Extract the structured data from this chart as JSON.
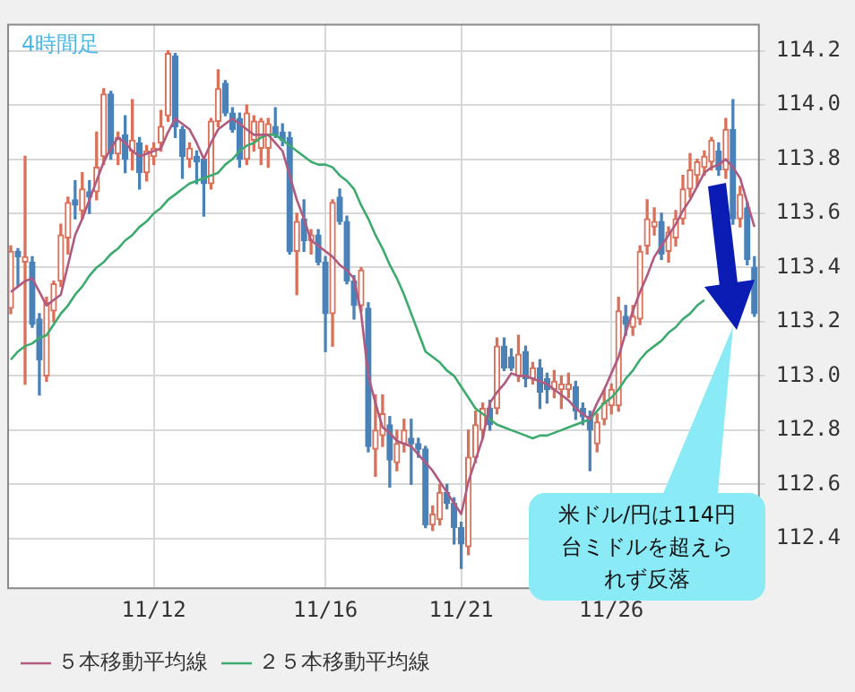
{
  "chart_data": {
    "type": "candlestick",
    "title": "4時間足",
    "categories": [
      null,
      null,
      null,
      null,
      null,
      null,
      null,
      null,
      null,
      null,
      null,
      null,
      null,
      null,
      null,
      null,
      null,
      null,
      null,
      null,
      "11/12",
      null,
      null,
      null,
      null,
      null,
      null,
      null,
      null,
      null,
      null,
      null,
      null,
      null,
      null,
      null,
      null,
      null,
      null,
      null,
      null,
      null,
      null,
      null,
      "11/16",
      null,
      null,
      null,
      null,
      null,
      null,
      null,
      null,
      null,
      null,
      null,
      null,
      null,
      null,
      null,
      null,
      null,
      null,
      "11/21",
      null,
      null,
      null,
      null,
      null,
      null,
      null,
      null,
      null,
      null,
      null,
      null,
      null,
      null,
      null,
      null,
      null,
      null,
      null,
      null,
      "11/26",
      null,
      null,
      null,
      null,
      null,
      null,
      null,
      null,
      null,
      null,
      null,
      null,
      null,
      null,
      null,
      null,
      null,
      null,
      null,
      null
    ],
    "ohlc": [
      [
        113.25,
        113.48,
        113.23,
        113.46
      ],
      [
        113.46,
        113.47,
        113.33,
        113.44
      ],
      [
        113.42,
        113.81,
        112.97,
        113.44
      ],
      [
        113.42,
        113.44,
        113.18,
        113.19
      ],
      [
        113.21,
        113.23,
        112.93,
        113.06
      ],
      [
        113.0,
        113.29,
        112.98,
        113.27
      ],
      [
        113.24,
        113.35,
        113.2,
        113.34
      ],
      [
        113.35,
        113.56,
        113.33,
        113.52
      ],
      [
        113.51,
        113.66,
        113.45,
        113.64
      ],
      [
        113.65,
        113.72,
        113.58,
        113.63
      ],
      [
        113.61,
        113.75,
        113.58,
        113.69
      ],
      [
        113.68,
        113.72,
        113.6,
        113.66
      ],
      [
        113.68,
        113.9,
        113.65,
        113.77
      ],
      [
        113.81,
        114.06,
        113.78,
        114.04
      ],
      [
        114.04,
        114.05,
        113.8,
        113.82
      ],
      [
        113.82,
        113.9,
        113.78,
        113.88
      ],
      [
        113.89,
        113.96,
        113.75,
        113.8
      ],
      [
        113.83,
        114.02,
        113.76,
        113.87
      ],
      [
        113.86,
        113.88,
        113.69,
        113.75
      ],
      [
        113.75,
        113.85,
        113.72,
        113.83
      ],
      [
        113.81,
        113.86,
        113.78,
        113.84
      ],
      [
        113.86,
        113.98,
        113.83,
        113.92
      ],
      [
        113.96,
        114.2,
        113.94,
        114.19
      ],
      [
        114.18,
        114.19,
        113.88,
        113.92
      ],
      [
        113.91,
        113.92,
        113.73,
        113.81
      ],
      [
        113.8,
        113.86,
        113.77,
        113.84
      ],
      [
        113.81,
        113.83,
        113.71,
        113.79
      ],
      [
        113.8,
        113.81,
        113.59,
        113.71
      ],
      [
        113.71,
        113.95,
        113.69,
        113.94
      ],
      [
        113.94,
        114.13,
        113.92,
        114.06
      ],
      [
        114.08,
        114.09,
        113.96,
        113.97
      ],
      [
        113.97,
        113.99,
        113.9,
        113.91
      ],
      [
        113.95,
        113.97,
        113.77,
        113.8
      ],
      [
        113.8,
        114.0,
        113.78,
        113.97
      ],
      [
        113.87,
        113.96,
        113.83,
        113.94
      ],
      [
        113.84,
        113.95,
        113.78,
        113.94
      ],
      [
        113.84,
        113.95,
        113.77,
        113.93
      ],
      [
        113.92,
        113.99,
        113.88,
        113.89
      ],
      [
        113.9,
        113.93,
        113.85,
        113.87
      ],
      [
        113.88,
        113.9,
        113.45,
        113.46
      ],
      [
        113.46,
        113.6,
        113.3,
        113.57
      ],
      [
        113.58,
        113.65,
        113.46,
        113.5
      ],
      [
        113.5,
        113.54,
        113.45,
        113.52
      ],
      [
        113.52,
        113.54,
        113.41,
        113.42
      ],
      [
        113.42,
        113.44,
        113.09,
        113.23
      ],
      [
        113.23,
        113.65,
        113.11,
        113.64
      ],
      [
        113.66,
        113.69,
        113.56,
        113.57
      ],
      [
        113.57,
        113.59,
        113.34,
        113.35
      ],
      [
        113.35,
        113.37,
        113.21,
        113.26
      ],
      [
        113.26,
        113.4,
        113.24,
        113.39
      ],
      [
        113.25,
        113.27,
        112.72,
        112.74
      ],
      [
        112.73,
        112.93,
        112.63,
        112.8
      ],
      [
        112.78,
        112.93,
        112.74,
        112.86
      ],
      [
        112.82,
        112.85,
        112.59,
        112.69
      ],
      [
        112.68,
        112.8,
        112.65,
        112.75
      ],
      [
        112.75,
        112.84,
        112.72,
        112.8
      ],
      [
        112.77,
        112.84,
        112.6,
        112.75
      ],
      [
        112.75,
        112.77,
        112.7,
        112.73
      ],
      [
        112.73,
        112.74,
        112.44,
        112.45
      ],
      [
        112.45,
        112.52,
        112.43,
        112.49
      ],
      [
        112.47,
        112.6,
        112.45,
        112.57
      ],
      [
        112.57,
        112.6,
        112.51,
        112.53
      ],
      [
        112.53,
        112.55,
        112.38,
        112.44
      ],
      [
        112.44,
        112.46,
        112.29,
        112.38
      ],
      [
        112.37,
        112.8,
        112.34,
        112.7
      ],
      [
        112.7,
        112.87,
        112.68,
        112.82
      ],
      [
        112.8,
        112.9,
        112.77,
        112.88
      ],
      [
        112.88,
        112.91,
        112.8,
        112.82
      ],
      [
        112.88,
        113.14,
        112.86,
        113.11
      ],
      [
        113.11,
        113.14,
        113.02,
        113.03
      ],
      [
        113.07,
        113.1,
        113.02,
        113.03
      ],
      [
        113.0,
        113.15,
        112.98,
        113.08
      ],
      [
        113.09,
        113.11,
        112.96,
        112.99
      ],
      [
        112.99,
        113.05,
        112.97,
        113.03
      ],
      [
        113.03,
        113.06,
        112.88,
        112.94
      ],
      [
        112.99,
        113.01,
        112.9,
        112.95
      ],
      [
        112.95,
        113.02,
        112.92,
        112.98
      ],
      [
        112.95,
        113.0,
        112.88,
        112.97
      ],
      [
        112.95,
        113.01,
        112.92,
        112.97
      ],
      [
        112.96,
        112.98,
        112.84,
        112.87
      ],
      [
        112.88,
        112.9,
        112.82,
        112.85
      ],
      [
        112.85,
        112.87,
        112.65,
        112.8
      ],
      [
        112.75,
        112.86,
        112.72,
        112.83
      ],
      [
        112.84,
        112.95,
        112.82,
        112.9
      ],
      [
        112.89,
        112.97,
        112.86,
        112.95
      ],
      [
        112.89,
        113.29,
        112.87,
        113.24
      ],
      [
        113.22,
        113.26,
        113.15,
        113.19
      ],
      [
        113.18,
        113.26,
        113.15,
        113.22
      ],
      [
        113.21,
        113.48,
        113.19,
        113.46
      ],
      [
        113.48,
        113.65,
        113.45,
        113.58
      ],
      [
        113.55,
        113.62,
        113.52,
        113.57
      ],
      [
        113.57,
        113.6,
        113.43,
        113.45
      ],
      [
        113.46,
        113.55,
        113.42,
        113.53
      ],
      [
        113.51,
        113.61,
        113.48,
        113.58
      ],
      [
        113.58,
        113.74,
        113.56,
        113.69
      ],
      [
        113.69,
        113.82,
        113.66,
        113.76
      ],
      [
        113.74,
        113.8,
        113.7,
        113.79
      ],
      [
        113.77,
        113.83,
        113.74,
        113.81
      ],
      [
        113.79,
        113.88,
        113.76,
        113.87
      ],
      [
        113.83,
        113.86,
        113.74,
        113.76
      ],
      [
        113.76,
        113.95,
        113.73,
        113.91
      ],
      [
        113.91,
        114.02,
        113.56,
        113.58
      ],
      [
        113.58,
        113.7,
        113.55,
        113.67
      ],
      [
        113.62,
        113.64,
        113.41,
        113.43
      ],
      [
        113.4,
        113.44,
        113.22,
        113.23
      ]
    ],
    "series": [
      {
        "name": "５本移動平均線",
        "type": "line",
        "color": "#b05a80",
        "values": [
          113.31,
          113.33,
          113.35,
          113.36,
          113.31,
          113.26,
          113.28,
          113.3,
          113.41,
          113.52,
          113.58,
          113.65,
          113.72,
          113.79,
          113.84,
          113.88,
          113.86,
          113.83,
          113.81,
          113.82,
          113.83,
          113.84,
          113.9,
          113.95,
          113.93,
          113.91,
          113.86,
          113.8,
          113.86,
          113.91,
          113.93,
          113.95,
          113.93,
          113.91,
          113.89,
          113.89,
          113.89,
          113.86,
          113.83,
          113.74,
          113.65,
          113.58,
          113.5,
          113.48,
          113.46,
          113.44,
          113.41,
          113.39,
          113.36,
          113.23,
          113.0,
          112.9,
          112.81,
          112.79,
          112.76,
          112.75,
          112.74,
          112.71,
          112.68,
          112.65,
          112.61,
          112.57,
          112.53,
          112.49,
          112.61,
          112.69,
          112.77,
          112.9,
          112.94,
          112.97,
          113.01,
          113.0,
          113.0,
          112.99,
          112.98,
          112.97,
          112.95,
          112.93,
          112.91,
          112.88,
          112.86,
          112.84,
          112.9,
          112.95,
          113.01,
          113.07,
          113.16,
          113.24,
          113.31,
          113.37,
          113.44,
          113.48,
          113.52,
          113.56,
          113.61,
          113.65,
          113.7,
          113.75,
          113.77,
          113.78,
          113.8,
          113.77,
          113.73,
          113.64,
          113.55
        ]
      },
      {
        "name": "２５本移動平均線",
        "type": "line",
        "color": "#3daa6e",
        "values": [
          113.06,
          113.09,
          113.11,
          113.12,
          113.14,
          113.15,
          113.19,
          113.23,
          113.26,
          113.3,
          113.33,
          113.37,
          113.4,
          113.42,
          113.45,
          113.47,
          113.5,
          113.52,
          113.55,
          113.57,
          113.6,
          113.62,
          113.65,
          113.67,
          113.69,
          113.71,
          113.72,
          113.73,
          113.74,
          113.75,
          113.78,
          113.8,
          113.83,
          113.85,
          113.86,
          113.88,
          113.89,
          113.89,
          113.87,
          113.85,
          113.83,
          113.81,
          113.79,
          113.78,
          113.78,
          113.77,
          113.74,
          113.72,
          113.69,
          113.63,
          113.58,
          113.52,
          113.47,
          113.41,
          113.36,
          113.3,
          113.23,
          113.16,
          113.09,
          113.07,
          113.05,
          113.02,
          113.0,
          112.96,
          112.92,
          112.88,
          112.86,
          112.84,
          112.82,
          112.81,
          112.8,
          112.79,
          112.78,
          112.77,
          112.78,
          112.78,
          112.79,
          112.8,
          112.81,
          112.82,
          112.83,
          112.84,
          112.87,
          112.9,
          112.92,
          112.95,
          112.99,
          113.02,
          113.06,
          113.09,
          113.11,
          113.13,
          113.16,
          113.18,
          113.21,
          113.23,
          113.26,
          113.28,
          null,
          null,
          null,
          null,
          null,
          null,
          null
        ]
      }
    ],
    "ylim": [
      112.22,
      114.3
    ],
    "yticks": [
      112.4,
      112.6,
      112.8,
      {
        "value": 113,
        "label": "113.0"
      },
      113.2,
      113.4,
      113.6,
      113.8,
      {
        "value": 114,
        "label": "114.0"
      },
      114.2
    ],
    "grid": true,
    "legend": "bottom left",
    "marker": "none",
    "annotations": [
      "米ドル/円は114円台ミドルを超えられず反落"
    ]
  }
}
